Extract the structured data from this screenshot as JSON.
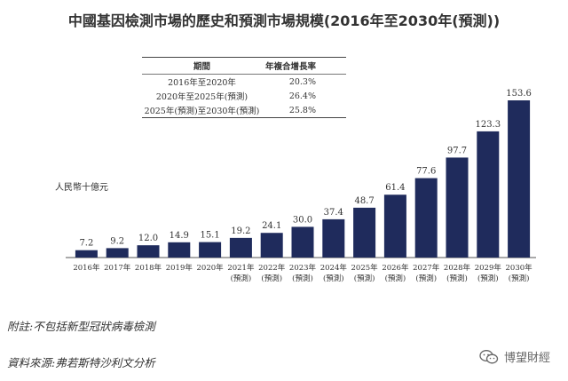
{
  "chart_data": {
    "type": "bar",
    "title": "中國基因檢測市場的歷史和預測市場規模(2016年至2030年(預測))",
    "unit_label": "人民幣十億元",
    "categories": [
      {
        "year": "2016年",
        "note": ""
      },
      {
        "year": "2017年",
        "note": ""
      },
      {
        "year": "2018年",
        "note": ""
      },
      {
        "year": "2019年",
        "note": ""
      },
      {
        "year": "2020年",
        "note": ""
      },
      {
        "year": "2021年",
        "note": "(預測)"
      },
      {
        "year": "2022年",
        "note": "(預測)"
      },
      {
        "year": "2023年",
        "note": "(預測)"
      },
      {
        "year": "2024年",
        "note": "(預測)"
      },
      {
        "year": "2025年",
        "note": "(預測)"
      },
      {
        "year": "2026年",
        "note": "(預測)"
      },
      {
        "year": "2027年",
        "note": "(預測)"
      },
      {
        "year": "2028年",
        "note": "(預測)"
      },
      {
        "year": "2029年",
        "note": "(預測)"
      },
      {
        "year": "2030年",
        "note": "(預測)"
      }
    ],
    "values": [
      7.2,
      9.2,
      12.0,
      14.9,
      15.1,
      19.2,
      24.1,
      30.0,
      37.4,
      48.7,
      61.4,
      77.6,
      97.7,
      123.3,
      153.6
    ],
    "value_labels": [
      "7.2",
      "9.2",
      "12.0",
      "14.9",
      "15.1",
      "19.2",
      "24.1",
      "30.0",
      "37.4",
      "48.7",
      "61.4",
      "77.6",
      "97.7",
      "123.3",
      "153.6"
    ],
    "ylim": [
      0,
      160
    ],
    "grid": false,
    "bar_color": "#1f2b5c"
  },
  "cagr_table": {
    "header": [
      "期間",
      "年複合增長率"
    ],
    "rows": [
      [
        "2016年至2020年",
        "20.3%"
      ],
      [
        "2020年至2025年(預測)",
        "26.4%"
      ],
      [
        "2025年(預測)至2030年(預測)",
        "25.8%"
      ]
    ]
  },
  "notes": {
    "footnote": "附註:不包括新型冠狀病毒檢測",
    "source": "資料來源:弗若斯特沙利文分析"
  },
  "watermark": {
    "text": "博望財經",
    "icon": "wechat-icon"
  }
}
